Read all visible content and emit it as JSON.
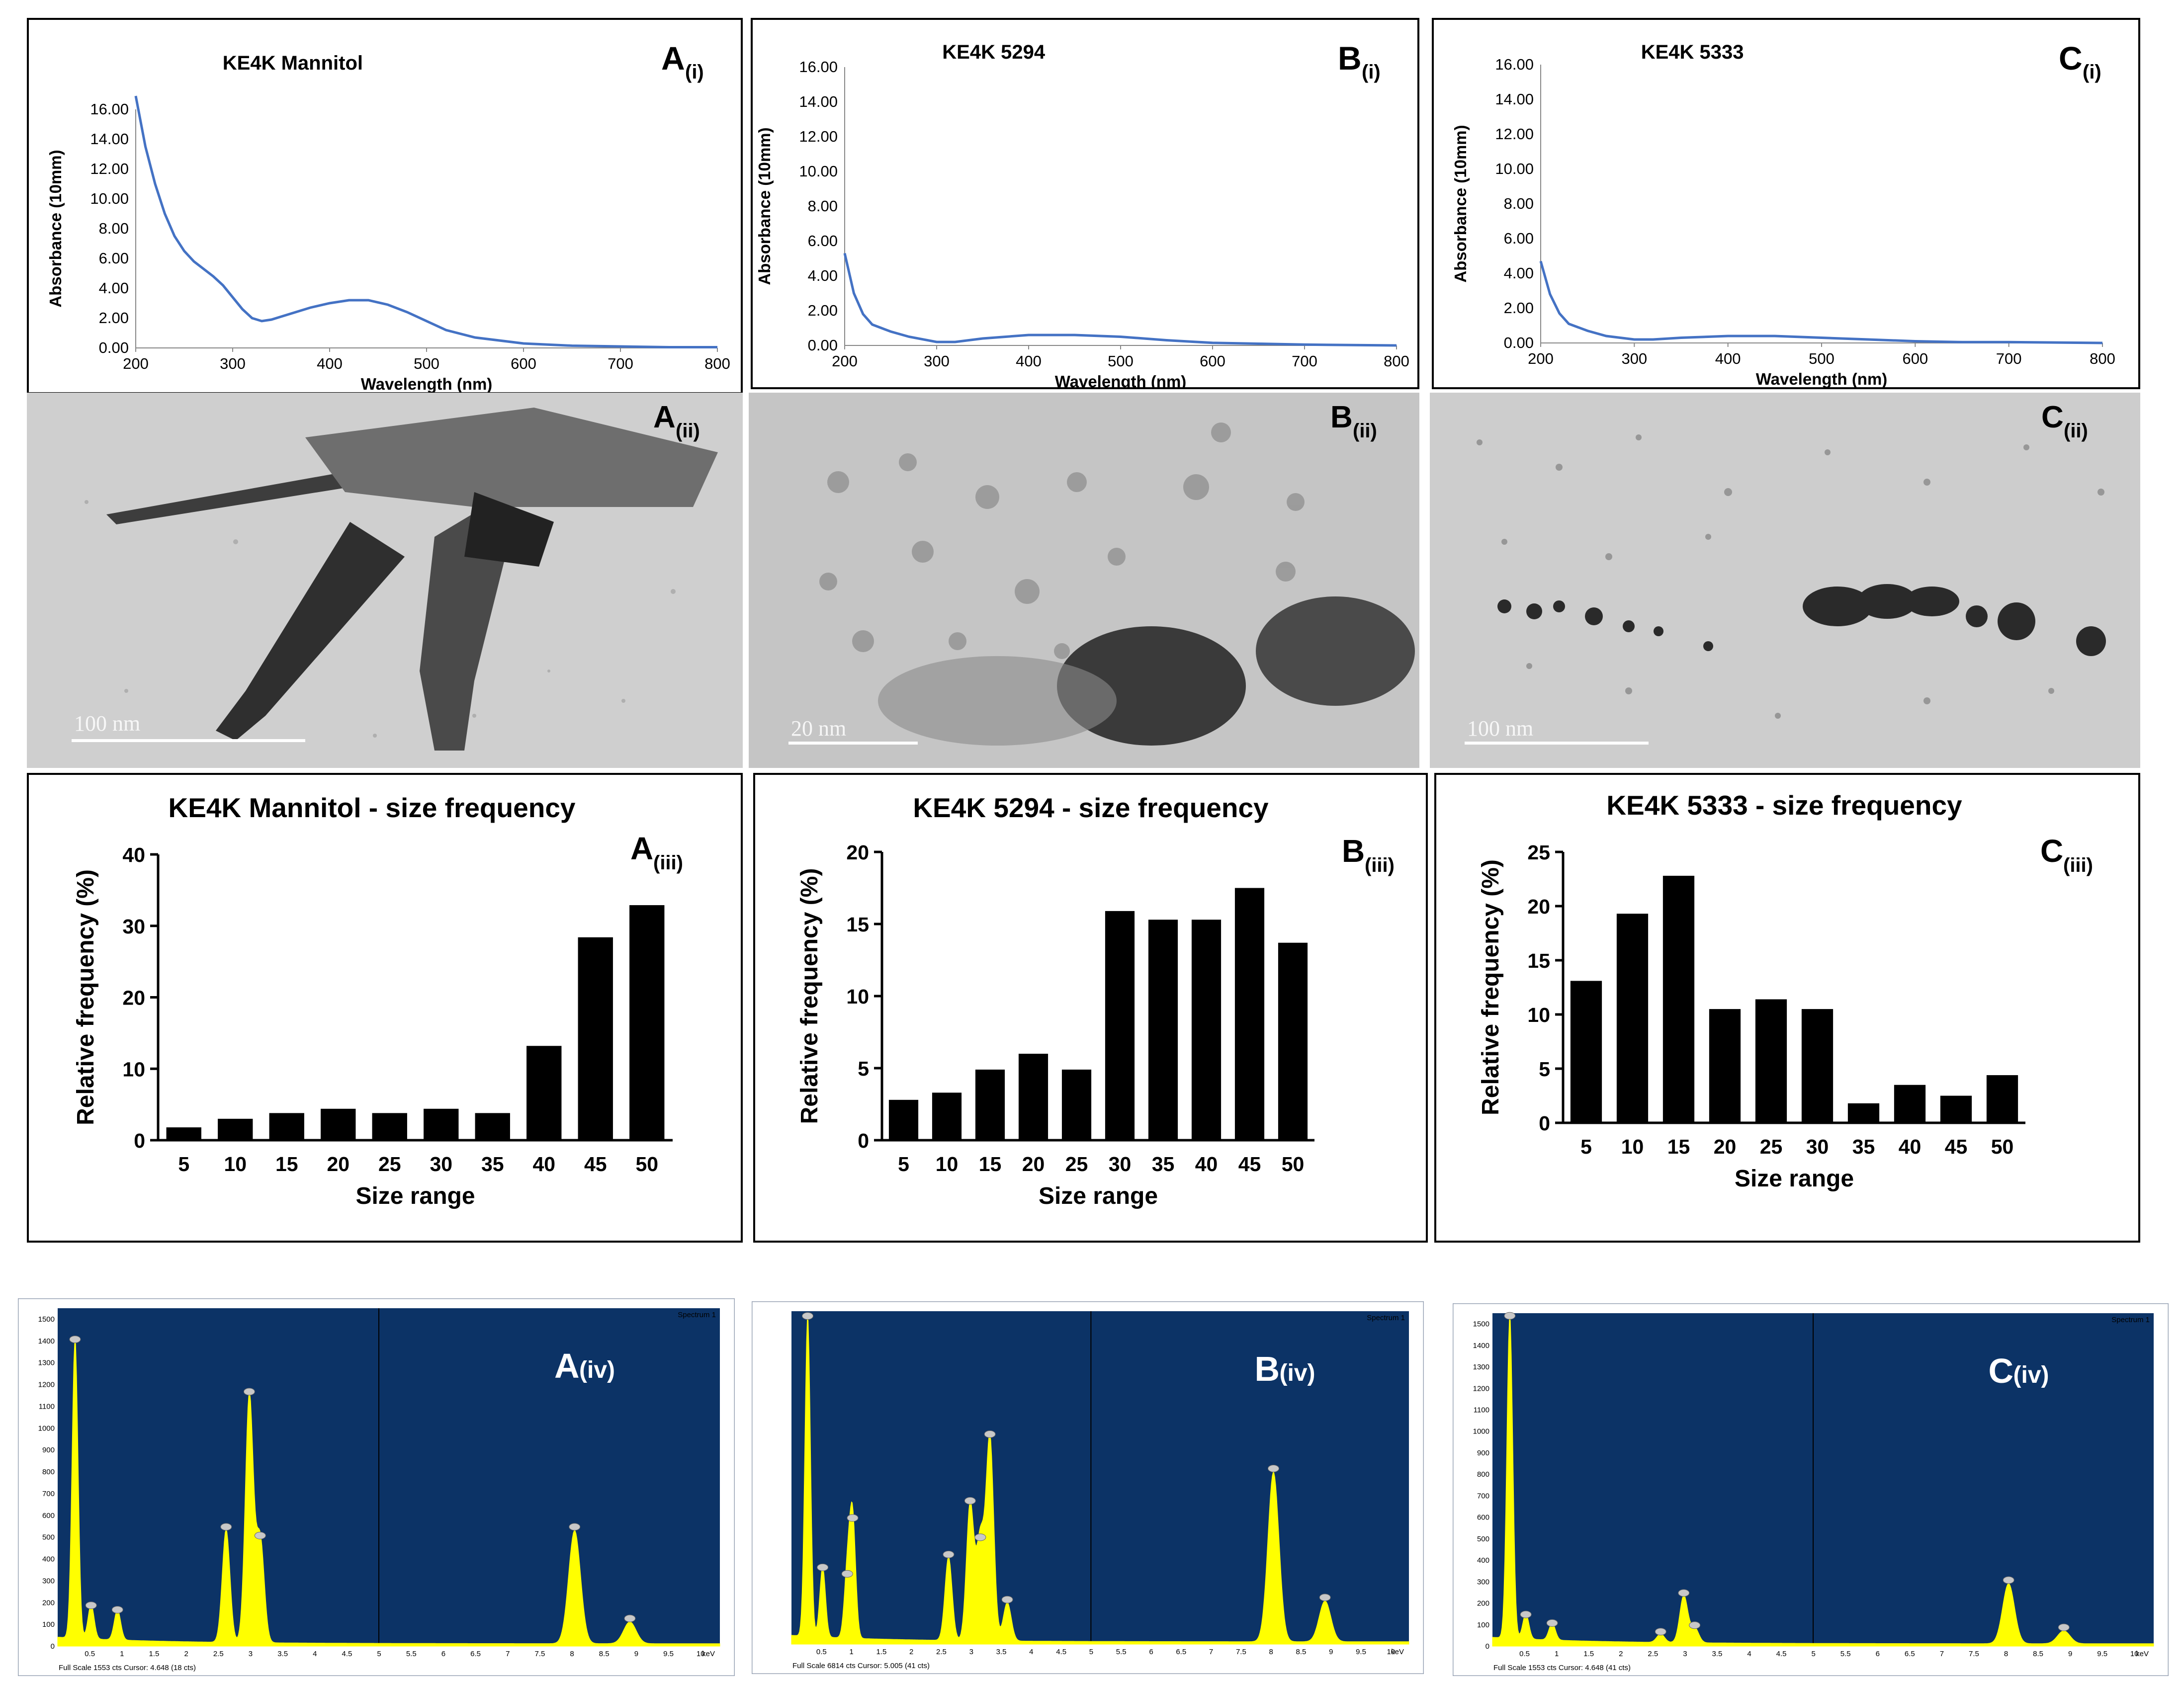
{
  "uv_panels": [
    {
      "id": "A",
      "label": "A",
      "sub": "(i)",
      "title": "KE4K Mannitol",
      "ylabel": "Absorbance (10mm)",
      "xlabel": "Wavelength (nm)",
      "yticks": [
        "0.00",
        "2.00",
        "4.00",
        "6.00",
        "8.00",
        "10.00",
        "12.00",
        "14.00",
        "16.00"
      ]
    },
    {
      "id": "B",
      "label": "B",
      "sub": "(i)",
      "title": "KE4K 5294",
      "ylabel": "Absorbance (10mm)",
      "xlabel": "Wavelength (nm)",
      "yticks": [
        "0.00",
        "2.00",
        "4.00",
        "6.00",
        "8.00",
        "10.00",
        "12.00",
        "14.00",
        "16.00"
      ]
    },
    {
      "id": "C",
      "label": "C",
      "sub": "(i)",
      "title": "KE4K 5333",
      "ylabel": "Absorbance (10mm)",
      "xlabel": "Wavelength (nm)",
      "yticks": [
        "0.00",
        "2.00",
        "4.00",
        "6.00",
        "8.00",
        "10.00",
        "12.00",
        "14.00",
        "16.00"
      ]
    }
  ],
  "uv_xticks": [
    "200",
    "300",
    "400",
    "500",
    "600",
    "700",
    "800"
  ],
  "tem_panels": [
    {
      "id": "A",
      "label": "A",
      "sub": "(ii)",
      "scale": "100 nm"
    },
    {
      "id": "B",
      "label": "B",
      "sub": "(ii)",
      "scale": "20 nm"
    },
    {
      "id": "C",
      "label": "C",
      "sub": "(ii)",
      "scale": "100 nm"
    }
  ],
  "bar_panels": [
    {
      "id": "A",
      "label": "A",
      "sub": "(iii)",
      "title": "KE4K Mannitol - size frequency",
      "ylabel": "Relative frequency (%)",
      "xlabel": "Size range",
      "yticks": [
        "0",
        "10",
        "20",
        "30",
        "40"
      ]
    },
    {
      "id": "B",
      "label": "B",
      "sub": "(iii)",
      "title": "KE4K 5294 - size frequency",
      "ylabel": "Relative frequency (%)",
      "xlabel": "Size range",
      "yticks": [
        "0",
        "5",
        "10",
        "15",
        "20"
      ]
    },
    {
      "id": "C",
      "label": "C",
      "sub": "(iii)",
      "title": "KE4K 5333 - size frequency",
      "ylabel": "Relative frequency (%)",
      "xlabel": "Size range",
      "yticks": [
        "0",
        "5",
        "10",
        "15",
        "20",
        "25"
      ]
    }
  ],
  "eds_panels": [
    {
      "id": "A",
      "label": "A",
      "sub": "(iv)",
      "spectrum": "Spectrum 1",
      "footer": "Full Scale 1553 cts Cursor: 4.648 (18 cts)",
      "unit": "keV",
      "yticks": [
        "0",
        "100",
        "200",
        "300",
        "400",
        "500",
        "600",
        "700",
        "800",
        "900",
        "1000",
        "1100",
        "1200",
        "1300",
        "1400",
        "1500"
      ]
    },
    {
      "id": "B",
      "label": "B",
      "sub": "(iv)",
      "spectrum": "Spectrum 1",
      "footer": "Full Scale 6814 cts Cursor: 5.005 (41 cts)",
      "unit": "keV",
      "yticks": []
    },
    {
      "id": "C",
      "label": "C",
      "sub": "(iv)",
      "spectrum": "Spectrum 1",
      "footer": "Full Scale 1553 cts Cursor: 4.648 (41 cts)",
      "unit": "keV",
      "yticks": [
        "0",
        "100",
        "200",
        "300",
        "400",
        "500",
        "600",
        "700",
        "800",
        "900",
        "1000",
        "1100",
        "1200",
        "1300",
        "1400",
        "1500"
      ]
    }
  ],
  "eds_xticks": [
    "0.5",
    "1",
    "1.5",
    "2",
    "2.5",
    "3",
    "3.5",
    "4",
    "4.5",
    "5",
    "5.5",
    "6",
    "6.5",
    "7",
    "7.5",
    "8",
    "8.5",
    "9",
    "9.5",
    "10"
  ],
  "colors": {
    "uv_line": "#4472c4",
    "bar": "#000000",
    "eds_bg": "#0c3366",
    "eds_peak": "#ffff00"
  },
  "chart_data": [
    {
      "type": "line",
      "panel": "A(i)",
      "title": "KE4K Mannitol",
      "xlabel": "Wavelength (nm)",
      "ylabel": "Absorbance (10mm)",
      "xlim": [
        200,
        800
      ],
      "ylim": [
        0,
        16
      ],
      "x": [
        200,
        210,
        220,
        230,
        240,
        250,
        260,
        270,
        280,
        290,
        300,
        310,
        320,
        330,
        340,
        350,
        360,
        380,
        400,
        420,
        440,
        460,
        480,
        500,
        520,
        550,
        600,
        650,
        700,
        750,
        800
      ],
      "y": [
        16.9,
        13.5,
        11.0,
        9.0,
        7.5,
        6.5,
        5.8,
        5.3,
        4.8,
        4.2,
        3.4,
        2.6,
        2.0,
        1.8,
        1.9,
        2.1,
        2.3,
        2.7,
        3.0,
        3.2,
        3.2,
        2.9,
        2.4,
        1.8,
        1.2,
        0.7,
        0.3,
        0.15,
        0.1,
        0.05,
        0.05
      ]
    },
    {
      "type": "line",
      "panel": "B(i)",
      "title": "KE4K 5294",
      "xlabel": "Wavelength (nm)",
      "ylabel": "Absorbance (10mm)",
      "xlim": [
        200,
        800
      ],
      "ylim": [
        0,
        16
      ],
      "x": [
        200,
        210,
        220,
        230,
        240,
        250,
        270,
        300,
        320,
        350,
        400,
        450,
        500,
        550,
        600,
        650,
        700,
        800
      ],
      "y": [
        5.3,
        3.0,
        1.8,
        1.2,
        1.0,
        0.8,
        0.5,
        0.2,
        0.2,
        0.4,
        0.6,
        0.6,
        0.5,
        0.3,
        0.15,
        0.1,
        0.05,
        0.0
      ]
    },
    {
      "type": "line",
      "panel": "C(i)",
      "title": "KE4K 5333",
      "xlabel": "Wavelength (nm)",
      "ylabel": "Absorbance (10mm)",
      "xlim": [
        200,
        800
      ],
      "ylim": [
        0,
        16
      ],
      "x": [
        200,
        210,
        220,
        230,
        240,
        250,
        270,
        300,
        320,
        350,
        400,
        450,
        500,
        550,
        600,
        650,
        700,
        800
      ],
      "y": [
        4.7,
        2.8,
        1.7,
        1.1,
        0.9,
        0.7,
        0.4,
        0.2,
        0.2,
        0.3,
        0.4,
        0.4,
        0.3,
        0.2,
        0.1,
        0.05,
        0.05,
        0.0
      ]
    },
    {
      "type": "bar",
      "panel": "A(iii)",
      "title": "KE4K Mannitol - size frequency",
      "xlabel": "Size range",
      "ylabel": "Relative frequency (%)",
      "ylim": [
        0,
        40
      ],
      "categories": [
        "5",
        "10",
        "15",
        "20",
        "25",
        "30",
        "35",
        "40",
        "45",
        "50"
      ],
      "values": [
        1.8,
        3.0,
        3.8,
        4.4,
        3.8,
        4.4,
        3.8,
        13.2,
        28.4,
        32.9
      ]
    },
    {
      "type": "bar",
      "panel": "B(iii)",
      "title": "KE4K 5294 - size frequency",
      "xlabel": "Size range",
      "ylabel": "Relative frequency (%)",
      "ylim": [
        0,
        20
      ],
      "categories": [
        "5",
        "10",
        "15",
        "20",
        "25",
        "30",
        "35",
        "40",
        "45",
        "50"
      ],
      "values": [
        2.8,
        3.3,
        4.9,
        6.0,
        4.9,
        15.9,
        15.3,
        15.3,
        17.5,
        13.7
      ]
    },
    {
      "type": "bar",
      "panel": "C(iii)",
      "title": "KE4K 5333 - size frequency",
      "xlabel": "Size range",
      "ylabel": "Relative frequency (%)",
      "ylim": [
        0,
        25
      ],
      "categories": [
        "5",
        "10",
        "15",
        "20",
        "25",
        "30",
        "35",
        "40",
        "45",
        "50"
      ],
      "values": [
        13.1,
        19.3,
        22.8,
        10.5,
        11.4,
        10.5,
        1.8,
        3.5,
        2.5,
        4.4
      ]
    },
    {
      "type": "area",
      "panel": "A(iv)",
      "xlabel": "keV",
      "xlim": [
        0,
        10.3
      ],
      "ylim": [
        0,
        1550
      ],
      "peaks": [
        [
          0.27,
          1380
        ],
        [
          0.52,
          160
        ],
        [
          0.93,
          140
        ],
        [
          2.62,
          520
        ],
        [
          2.98,
          1140
        ],
        [
          3.15,
          480
        ],
        [
          8.04,
          520
        ],
        [
          8.9,
          100
        ]
      ]
    },
    {
      "type": "area",
      "panel": "B(iv)",
      "xlabel": "keV",
      "xlim": [
        0,
        10.3
      ],
      "ylim": [
        0,
        1550
      ],
      "peaks": [
        [
          0.27,
          1500
        ],
        [
          0.52,
          330
        ],
        [
          0.93,
          300
        ],
        [
          1.02,
          560
        ],
        [
          2.62,
          390
        ],
        [
          2.98,
          640
        ],
        [
          3.15,
          470
        ],
        [
          3.31,
          950
        ],
        [
          3.6,
          180
        ],
        [
          8.04,
          790
        ],
        [
          8.9,
          190
        ]
      ]
    },
    {
      "type": "area",
      "panel": "C(iv)",
      "xlabel": "keV",
      "xlim": [
        0,
        10.3
      ],
      "ylim": [
        0,
        1550
      ],
      "peaks": [
        [
          0.27,
          1510
        ],
        [
          0.52,
          120
        ],
        [
          0.93,
          80
        ],
        [
          2.62,
          40
        ],
        [
          2.98,
          220
        ],
        [
          3.15,
          70
        ],
        [
          8.04,
          280
        ],
        [
          8.9,
          60
        ]
      ]
    }
  ]
}
